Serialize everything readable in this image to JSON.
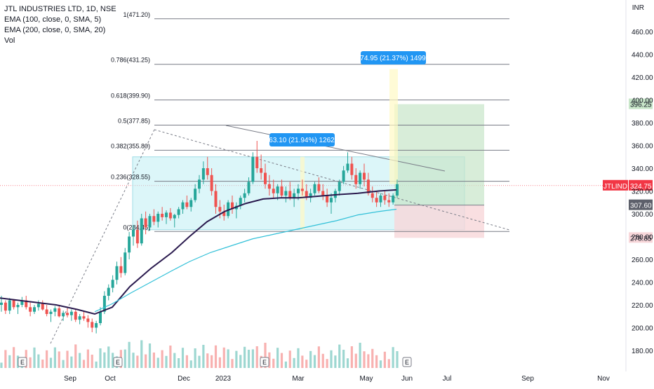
{
  "legend": {
    "title": "JTL INDUSTRIES LTD, 1D, NSE",
    "ema100": "EMA (100, close, 0, SMA, 5)",
    "ema200": "EMA (200, close, 0, SMA, 20)",
    "vol": "Vol"
  },
  "currency": "INR",
  "colors": {
    "up": "#26a69a",
    "down": "#ef5350",
    "ema100": "#2a1a4e",
    "ema200": "#31c0d8",
    "fib": "#787b86",
    "box": "#b2ebf2",
    "long_profit": "#c8e6c9",
    "long_loss": "#f8d7da",
    "label_blue": "#2196f3",
    "ticker_red": "#f23645"
  },
  "chart_data": {
    "type": "candlestick",
    "symbol": "JTLIND",
    "interval": "1D",
    "exchange": "NSE",
    "ylim": [
      170,
      480
    ],
    "y_ticks": [
      180,
      200,
      220,
      240,
      260,
      280,
      300,
      320,
      340,
      360,
      380,
      400,
      420,
      440,
      460
    ],
    "x_ticks": [
      "Sep",
      "Oct",
      "Dec",
      "2023",
      "Mar",
      "May",
      "Jun",
      "Jul",
      "Sep",
      "Nov"
    ],
    "fib_levels": [
      {
        "label": "1(471.20)",
        "value": 471.2
      },
      {
        "label": "0.786(431.25)",
        "value": 431.25
      },
      {
        "label": "0.618(399.90)",
        "value": 399.9
      },
      {
        "label": "0.5(377.85)",
        "value": 377.85
      },
      {
        "label": "0.382(355.80)",
        "value": 355.8
      },
      {
        "label": "0.236(328.55)",
        "value": 328.55
      },
      {
        "label": "0(284.45)",
        "value": 284.45
      }
    ],
    "price_labels": [
      {
        "text": "396.25",
        "value": 396.25,
        "kind": "target"
      },
      {
        "text": "324.75",
        "value": 324.75,
        "kind": "last",
        "ticker": "JTLIND"
      },
      {
        "text": "307.60",
        "value": 307.6,
        "kind": "ema"
      },
      {
        "text": "278.85",
        "value": 278.85,
        "kind": "stop"
      }
    ],
    "measure_labels": [
      "63.10 (21.94%) 1262",
      "74.95 (21.37%) 1499"
    ],
    "series": [
      {
        "name": "EMA (100, close, 0, SMA, 5)",
        "values": [
          [
            0,
            226
          ],
          [
            40,
            223
          ],
          [
            80,
            220
          ],
          [
            110,
            216
          ],
          [
            135,
            212
          ],
          [
            160,
            218
          ],
          [
            185,
            236
          ],
          [
            215,
            252
          ],
          [
            245,
            266
          ],
          [
            270,
            280
          ],
          [
            295,
            293
          ],
          [
            320,
            302
          ],
          [
            350,
            309
          ],
          [
            375,
            313
          ],
          [
            400,
            314
          ],
          [
            425,
            314
          ],
          [
            445,
            315
          ],
          [
            465,
            316
          ],
          [
            485,
            317
          ],
          [
            510,
            318
          ],
          [
            540,
            320
          ],
          [
            565,
            321
          ]
        ]
      },
      {
        "name": "EMA (200, close, 0, SMA, 20)",
        "values": [
          [
            135,
            214
          ],
          [
            160,
            221
          ],
          [
            185,
            230
          ],
          [
            215,
            240
          ],
          [
            245,
            250
          ],
          [
            270,
            258
          ],
          [
            300,
            266
          ],
          [
            330,
            272
          ],
          [
            360,
            278
          ],
          [
            390,
            282
          ],
          [
            420,
            286
          ],
          [
            450,
            290
          ],
          [
            480,
            294
          ],
          [
            510,
            299
          ],
          [
            540,
            302
          ],
          [
            565,
            304
          ]
        ]
      }
    ],
    "candles_est": [
      [
        220,
        228,
        214,
        222
      ],
      [
        222,
        224,
        212,
        215
      ],
      [
        215,
        226,
        212,
        224
      ],
      [
        224,
        225,
        216,
        218
      ],
      [
        218,
        222,
        212,
        220
      ],
      [
        220,
        227,
        218,
        224
      ],
      [
        224,
        228,
        216,
        218
      ],
      [
        218,
        222,
        210,
        214
      ],
      [
        214,
        220,
        212,
        218
      ],
      [
        218,
        224,
        215,
        221
      ],
      [
        221,
        224,
        215,
        216
      ],
      [
        216,
        220,
        210,
        212
      ],
      [
        212,
        216,
        205,
        214
      ],
      [
        214,
        219,
        210,
        217
      ],
      [
        217,
        219,
        209,
        210
      ],
      [
        210,
        215,
        206,
        213
      ],
      [
        213,
        217,
        209,
        211
      ],
      [
        211,
        216,
        206,
        214
      ],
      [
        214,
        216,
        205,
        207
      ],
      [
        207,
        212,
        203,
        210
      ],
      [
        210,
        215,
        206,
        208
      ],
      [
        208,
        211,
        200,
        205
      ],
      [
        205,
        208,
        196,
        200
      ],
      [
        200,
        206,
        195,
        204
      ],
      [
        204,
        218,
        202,
        214
      ],
      [
        214,
        232,
        212,
        228
      ],
      [
        228,
        238,
        224,
        235
      ],
      [
        235,
        246,
        231,
        242
      ],
      [
        242,
        258,
        238,
        254
      ],
      [
        254,
        262,
        244,
        248
      ],
      [
        248,
        270,
        246,
        266
      ],
      [
        266,
        284,
        260,
        280
      ],
      [
        280,
        290,
        272,
        286
      ],
      [
        286,
        294,
        270,
        274
      ],
      [
        274,
        300,
        272,
        296
      ],
      [
        296,
        302,
        282,
        288
      ],
      [
        288,
        300,
        285,
        298
      ],
      [
        298,
        304,
        290,
        293
      ],
      [
        293,
        302,
        288,
        300
      ],
      [
        300,
        306,
        294,
        297
      ],
      [
        297,
        303,
        291,
        301
      ],
      [
        301,
        305,
        294,
        296
      ],
      [
        296,
        300,
        288,
        299
      ],
      [
        299,
        306,
        296,
        304
      ],
      [
        304,
        312,
        300,
        310
      ],
      [
        310,
        316,
        304,
        306
      ],
      [
        306,
        314,
        302,
        312
      ],
      [
        312,
        326,
        310,
        322
      ],
      [
        322,
        334,
        318,
        330
      ],
      [
        330,
        346,
        326,
        340
      ],
      [
        340,
        350,
        330,
        334
      ],
      [
        334,
        340,
        316,
        320
      ],
      [
        320,
        326,
        300,
        306
      ],
      [
        306,
        312,
        296,
        302
      ],
      [
        302,
        308,
        294,
        298
      ],
      [
        298,
        312,
        296,
        310
      ],
      [
        310,
        316,
        300,
        304
      ],
      [
        304,
        310,
        296,
        307
      ],
      [
        307,
        316,
        304,
        314
      ],
      [
        314,
        322,
        310,
        318
      ],
      [
        318,
        332,
        316,
        328
      ],
      [
        328,
        354,
        326,
        350
      ],
      [
        350,
        364,
        336,
        340
      ],
      [
        340,
        352,
        330,
        336
      ],
      [
        336,
        344,
        322,
        326
      ],
      [
        326,
        334,
        316,
        322
      ],
      [
        322,
        330,
        314,
        318
      ],
      [
        318,
        326,
        312,
        324
      ],
      [
        324,
        330,
        314,
        316
      ],
      [
        316,
        324,
        310,
        320
      ],
      [
        320,
        328,
        312,
        314
      ],
      [
        314,
        322,
        306,
        318
      ],
      [
        318,
        326,
        312,
        322
      ],
      [
        322,
        330,
        316,
        320
      ],
      [
        320,
        326,
        312,
        314
      ],
      [
        314,
        322,
        310,
        318
      ],
      [
        318,
        328,
        316,
        326
      ],
      [
        326,
        332,
        318,
        320
      ],
      [
        320,
        326,
        312,
        316
      ],
      [
        316,
        322,
        306,
        310
      ],
      [
        310,
        318,
        300,
        314
      ],
      [
        314,
        322,
        310,
        320
      ],
      [
        320,
        330,
        316,
        328
      ],
      [
        328,
        342,
        326,
        338
      ],
      [
        338,
        354,
        336,
        344
      ],
      [
        344,
        350,
        330,
        334
      ],
      [
        334,
        340,
        322,
        326
      ],
      [
        326,
        338,
        322,
        336
      ],
      [
        336,
        344,
        324,
        330
      ],
      [
        330,
        336,
        316,
        318
      ],
      [
        318,
        324,
        310,
        314
      ],
      [
        314,
        320,
        306,
        310
      ],
      [
        310,
        318,
        306,
        316
      ],
      [
        316,
        320,
        308,
        312
      ],
      [
        312,
        318,
        306,
        310
      ],
      [
        310,
        318,
        308,
        316
      ],
      [
        316,
        330,
        314,
        326
      ]
    ]
  }
}
